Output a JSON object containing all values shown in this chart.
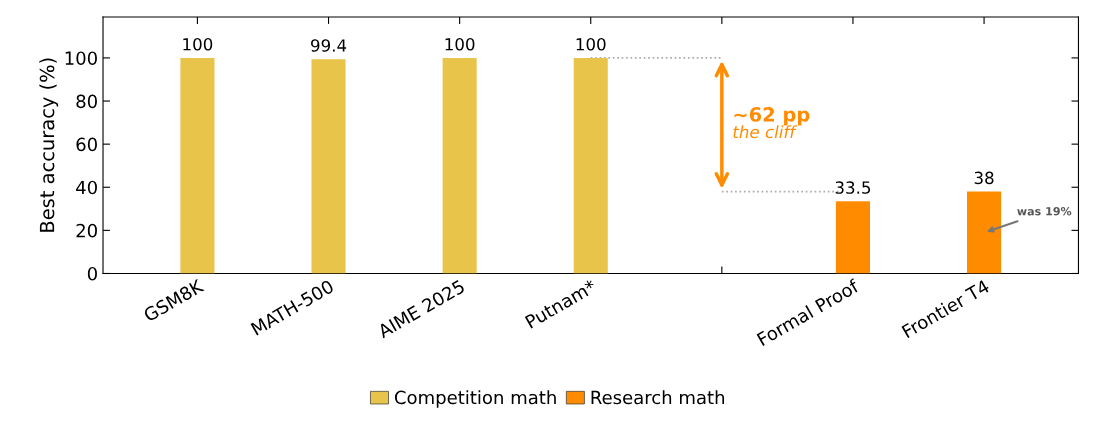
{
  "chart_data": {
    "type": "bar",
    "ylabel": "Best accuracy (%)",
    "categories": [
      "GSM8K",
      "MATH-500",
      "AIME 2025",
      "Putnam*",
      null,
      "Formal Proof",
      "Frontier T4"
    ],
    "series": [
      {
        "name": "Competition math",
        "color": "#e9c44a",
        "values": [
          100,
          99.4,
          100,
          100,
          null,
          null,
          null
        ]
      },
      {
        "name": "Research math",
        "color": "#ff8c00",
        "values": [
          null,
          null,
          null,
          null,
          null,
          33.5,
          38
        ]
      }
    ],
    "ylim": [
      0,
      119
    ],
    "yticks": [
      0,
      20,
      40,
      60,
      80,
      100
    ],
    "grid": false,
    "legend": "bottom",
    "data_labels": true,
    "annotations": [
      "∼62 pp",
      "the cliff",
      "was 19%"
    ]
  }
}
